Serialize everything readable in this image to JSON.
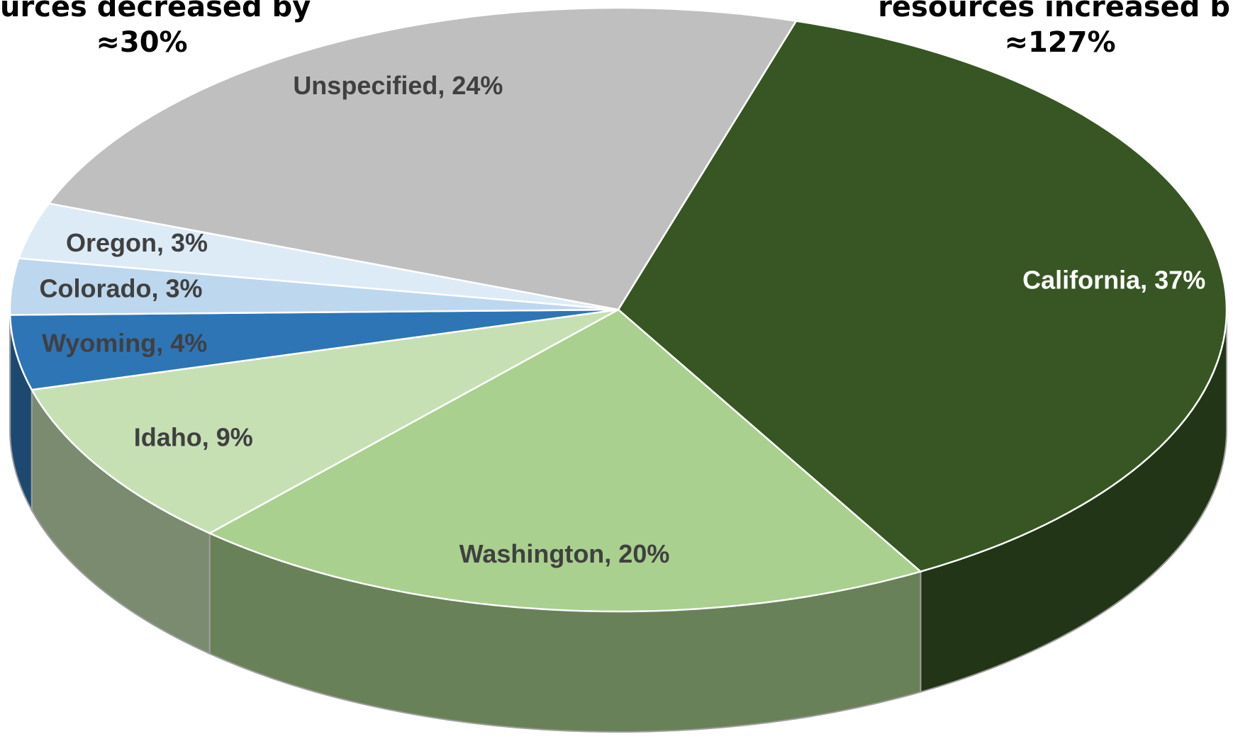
{
  "chart_data": {
    "type": "pie3d",
    "annotations": [
      "urces decreased by",
      "≈30%",
      "resources increased b",
      "≈127%"
    ],
    "categories": [
      "California",
      "Washington",
      "Idaho",
      "Wyoming",
      "Colorado",
      "Oregon",
      "Unspecified"
    ],
    "values": [
      37,
      20,
      9,
      4,
      3,
      3,
      24
    ],
    "value_labels": [
      "California, 37%",
      "Washington, 20%",
      "Idaho, 9%",
      "Wyoming, 4%",
      "Colorado, 3%",
      "Oregon, 3%",
      "Unspecified, 24%"
    ],
    "colors": [
      "#375623",
      "#a9d08e",
      "#c6e0b4",
      "#2e75b6",
      "#bdd7ee",
      "#ddebf7",
      "#bfbfbf"
    ],
    "label_colors": [
      "#ffffff",
      "#404040",
      "#404040",
      "#404040",
      "#404040",
      "#404040",
      "#404040"
    ]
  }
}
